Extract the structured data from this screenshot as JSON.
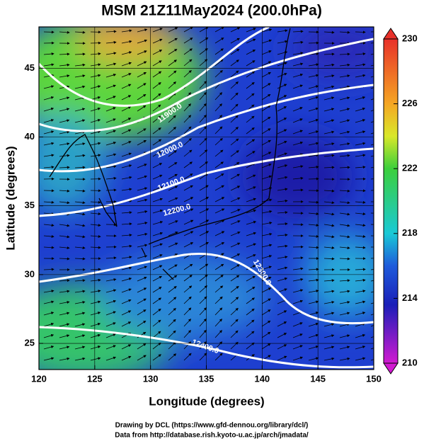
{
  "title": "MSM 21Z11May2024 (200.0hPa)",
  "x_axis": {
    "label": "Longitude (degrees)",
    "lim": [
      120,
      150
    ],
    "ticks": [
      120,
      125,
      130,
      135,
      140,
      145,
      150
    ]
  },
  "y_axis": {
    "label": "Latitude  (degrees)",
    "lim": [
      23.1,
      48.0
    ],
    "ticks": [
      25,
      30,
      35,
      40,
      45
    ]
  },
  "colorbar": {
    "lim": [
      210,
      230
    ],
    "ticks": [
      210,
      214,
      218,
      222,
      226,
      230
    ]
  },
  "contour_labels": [
    "11900.0",
    "12000.0",
    "12100.0",
    "12200.0",
    "12300.0",
    "12400.0"
  ],
  "footer": [
    "Drawing by DCL (https://www.gfd-dennou.org/library/dcl/)",
    "Data from http://database.rish.kyoto-u.ac.jp/arch/jmadata/"
  ]
}
